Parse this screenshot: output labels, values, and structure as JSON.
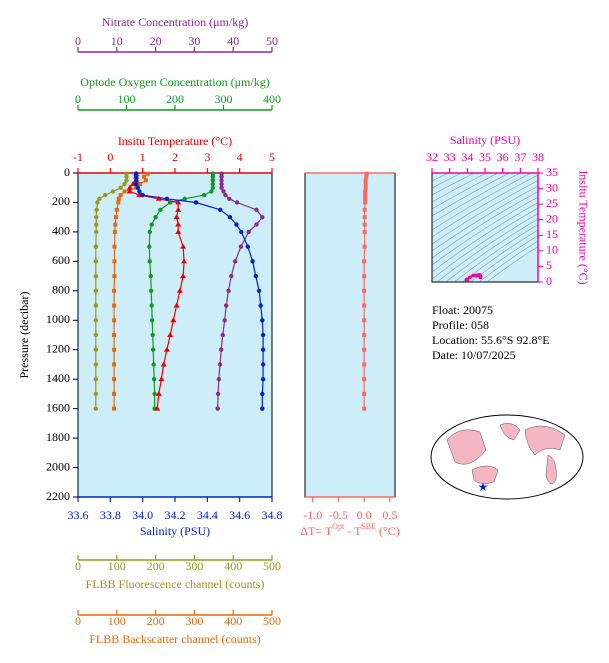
{
  "chart_data": [
    {
      "type": "profile",
      "y_label": "Pressure (decibar)",
      "ylim": [
        0,
        2200
      ],
      "yticks": [
        0,
        200,
        400,
        600,
        800,
        1000,
        1200,
        1400,
        1600,
        1800,
        2000,
        2200
      ],
      "y": [
        5,
        25,
        50,
        75,
        100,
        125,
        150,
        175,
        200,
        250,
        300,
        350,
        400,
        500,
        600,
        700,
        800,
        900,
        1000,
        1100,
        1200,
        1300,
        1400,
        1500,
        1600
      ],
      "background": "#cdeef8",
      "axes": [
        {
          "label": "Nitrate Concentration (μm/kg)",
          "color": "#8e2a8e",
          "lim": [
            0,
            50
          ],
          "ticks": [
            0,
            10,
            20,
            30,
            40,
            50
          ]
        },
        {
          "label": "Optode Oxygen Concentration (μm/kg)",
          "color": "#119922",
          "lim": [
            0,
            400
          ],
          "ticks": [
            0,
            100,
            200,
            300,
            400
          ]
        },
        {
          "label": "Insitu Temperature (°C)",
          "color": "#ee0000",
          "lim": [
            -1,
            5
          ],
          "ticks": [
            -1,
            0,
            1,
            2,
            3,
            4,
            5
          ]
        },
        {
          "label": "Salinity (PSU)",
          "color": "#0022cc",
          "lim": [
            33.6,
            34.8
          ],
          "ticks": [
            33.6,
            33.8,
            {
              "value": 34,
              "label": "34.0"
            },
            34.2,
            34.4,
            34.6,
            34.8
          ]
        },
        {
          "label": "FLBB Fluorescence channel (counts)",
          "color": "#999922",
          "lim": [
            0,
            500
          ],
          "ticks": [
            0,
            100,
            200,
            300,
            400,
            500
          ]
        },
        {
          "label": "FLBB Backscatter channel (counts)",
          "color": "#e06a10",
          "lim": [
            0,
            500
          ],
          "ticks": [
            0,
            100,
            200,
            300,
            400,
            500
          ]
        }
      ],
      "series": [
        {
          "axis": 3,
          "color": "#0022cc",
          "marker": "circle",
          "values": [
            33.96,
            33.96,
            33.96,
            33.96,
            33.97,
            33.98,
            34.0,
            34.15,
            34.33,
            34.48,
            34.54,
            34.58,
            34.61,
            34.65,
            34.68,
            34.7,
            34.72,
            34.73,
            34.74,
            34.745,
            34.745,
            34.745,
            34.745,
            34.74,
            34.74
          ]
        },
        {
          "axis": 2,
          "color": "#ee0000",
          "marker": "triangle",
          "values": [
            0.8,
            0.8,
            0.8,
            0.7,
            0.6,
            0.6,
            0.9,
            1.5,
            2.1,
            2.1,
            2.05,
            2.1,
            2.1,
            2.25,
            2.28,
            2.25,
            2.15,
            2.05,
            1.95,
            1.85,
            1.75,
            1.65,
            1.58,
            1.5,
            1.45
          ]
        },
        {
          "axis": 1,
          "color": "#119922",
          "marker": "circle",
          "values": [
            278,
            278,
            278,
            278,
            278,
            275,
            260,
            220,
            190,
            170,
            160,
            152,
            148,
            147,
            148,
            150,
            151,
            152,
            153,
            154,
            155,
            156,
            157,
            158,
            158
          ]
        },
        {
          "axis": 0,
          "color": "#8e2a8e",
          "marker": "circle",
          "values": [
            37,
            37,
            37,
            37,
            37,
            37.5,
            38,
            39,
            41,
            46,
            47.5,
            46,
            44,
            42,
            40.5,
            39.5,
            38.8,
            38.2,
            37.8,
            37.3,
            36.9,
            36.6,
            36.3,
            36.1,
            36
          ]
        },
        {
          "axis": 4,
          "color": "#999922",
          "marker": "circle",
          "values": [
            125,
            125,
            125,
            120,
            110,
            90,
            70,
            55,
            50,
            48,
            47,
            47,
            47,
            46,
            46,
            46,
            46,
            46,
            46,
            46,
            46,
            46,
            46,
            46,
            46
          ]
        },
        {
          "axis": 5,
          "color": "#e06a10",
          "marker": "square",
          "values": [
            180,
            170,
            175,
            160,
            150,
            120,
            110,
            105,
            104,
            100,
            98,
            96,
            95,
            94,
            94,
            94,
            93,
            93,
            93,
            93,
            93,
            93,
            93,
            93,
            93
          ]
        }
      ]
    },
    {
      "type": "profile-diff",
      "x_label": [
        "ΔT= T",
        "Opt",
        " - T",
        "SBE",
        " (°C)"
      ],
      "color": "#ff6666",
      "background": "#cdeef8",
      "xlim": [
        -1.15,
        0.6
      ],
      "xticks": [
        {
          "value": -1,
          "label": "-1.0"
        },
        -0.5,
        {
          "value": 0,
          "label": "0.0"
        },
        0.5
      ],
      "values": [
        0.05,
        0.04,
        0.03,
        0.03,
        0.03,
        0.02,
        0.02,
        0.02,
        0.02,
        0.01,
        0.01,
        0.01,
        0.01,
        0.01,
        0,
        0,
        0,
        0,
        0,
        0,
        0,
        0,
        0,
        0,
        0
      ]
    },
    {
      "type": "ts",
      "x_label": "Salinity (PSU)",
      "y_label": "Insitu Temperature (°C)",
      "color": "#ee00aa",
      "background": "#cdeef8",
      "xlim": [
        32,
        38
      ],
      "xticks": [
        32,
        33,
        34,
        35,
        36,
        37,
        38
      ],
      "ylim": [
        0,
        35
      ],
      "yticks": [
        0,
        5,
        10,
        15,
        20,
        25,
        30,
        35
      ]
    }
  ],
  "info": [
    "Float:  20075",
    "Profile:  058",
    "Location:  55.6°S  92.8°E",
    "Date:  10/07/2025"
  ]
}
